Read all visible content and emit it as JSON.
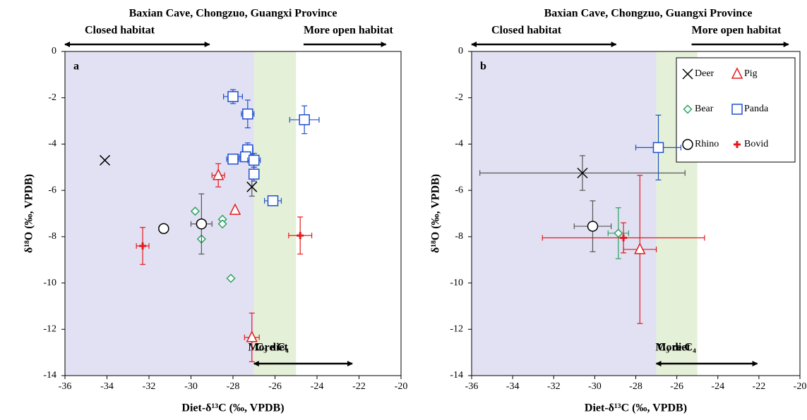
{
  "chart_data": [
    {
      "type": "scatter",
      "title": "Baxian Cave, Chongzuo, Guangxi Province",
      "panel_label": "a",
      "xlabel": "Diet-δ¹³C (‰, VPDB)",
      "ylabel": "δ¹⁸O (‰, VPDB)",
      "xlim": [
        -36,
        -20
      ],
      "ylim": [
        -14,
        0
      ],
      "xticks": [
        -36,
        -34,
        -32,
        -30,
        -28,
        -26,
        -24,
        -22,
        -20
      ],
      "yticks": [
        0,
        -2,
        -4,
        -6,
        -8,
        -10,
        -12,
        -14
      ],
      "regions": [
        {
          "xlim": [
            -36,
            -27
          ],
          "color": "#e1e1f3"
        },
        {
          "xlim": [
            -27,
            -25
          ],
          "color": "#e5f0d9"
        }
      ],
      "annotations": {
        "closed": "Closed habitat",
        "open": "More open habitat",
        "c3": "C₃ diet",
        "c4": "More C₄"
      },
      "legend": false,
      "series": [
        {
          "marker": "x",
          "color": "#000000",
          "errcolor": "#555555",
          "x": [
            -34.1,
            -27.1
          ],
          "values": [
            -4.7,
            -5.85
          ],
          "xerr": [
            null,
            null
          ],
          "yerr": [
            null,
            0.4
          ]
        },
        {
          "marker": "triangle",
          "color": "#e41a1c",
          "errcolor": "#e41a1c",
          "x": [
            -28.7,
            -27.9,
            -27.1
          ],
          "values": [
            -5.35,
            -6.85,
            -12.35
          ],
          "xerr": [
            0.3,
            null,
            0.35
          ],
          "yerr": [
            0.5,
            null,
            1.05
          ]
        },
        {
          "marker": "diamond",
          "color": "#2ca25f",
          "errcolor": "#2ca25f",
          "x": [
            -29.8,
            -29.5,
            -28.5,
            -28.5,
            -28.1
          ],
          "values": [
            -6.9,
            -8.1,
            -7.25,
            -7.45,
            -9.8
          ],
          "xerr": [
            null,
            null,
            null,
            null,
            null
          ],
          "yerr": [
            null,
            null,
            null,
            null,
            null
          ]
        },
        {
          "marker": "circle",
          "color": "#000000",
          "errcolor": "#555555",
          "x": [
            -31.3,
            -29.5
          ],
          "values": [
            -7.65,
            -7.45
          ],
          "xerr": [
            null,
            0.5
          ],
          "yerr": [
            null,
            1.3
          ]
        },
        {
          "marker": "plus",
          "color": "#e41a1c",
          "errcolor": "#e41a1c",
          "x": [
            -32.3,
            -24.8
          ],
          "values": [
            -8.4,
            -7.95
          ],
          "xerr": [
            0.3,
            0.55
          ],
          "yerr": [
            0.8,
            0.8
          ]
        },
        {
          "marker": "square",
          "color": "#1f4fd0",
          "errcolor": "#1f4fd0",
          "x": [
            -28,
            -27.3,
            -24.6,
            -27.3,
            -28,
            -27.4,
            -27,
            -27,
            -26.1
          ],
          "values": [
            -1.95,
            -2.7,
            -2.95,
            -4.25,
            -4.65,
            -4.55,
            -4.7,
            -5.3,
            -6.45
          ],
          "xerr": [
            0.45,
            0.3,
            0.7,
            0.25,
            0.3,
            0.3,
            0.3,
            null,
            0.4
          ],
          "yerr": [
            0.3,
            0.6,
            0.6,
            0.3,
            0.2,
            null,
            0.3,
            0.3,
            0.15
          ]
        }
      ]
    },
    {
      "type": "scatter",
      "title": "Baxian Cave, Chongzuo, Guangxi Province",
      "panel_label": "b",
      "xlabel": "Diet-δ¹³C (‰, VPDB)",
      "ylabel": "δ¹⁸O (‰, VPDB)",
      "xlim": [
        -36,
        -20
      ],
      "ylim": [
        -14,
        0
      ],
      "xticks": [
        -36,
        -34,
        -32,
        -30,
        -28,
        -26,
        -24,
        -22,
        -20
      ],
      "yticks": [
        0,
        -2,
        -4,
        -6,
        -8,
        -10,
        -12,
        -14
      ],
      "regions": [
        {
          "xlim": [
            -36,
            -27
          ],
          "color": "#e1e1f3"
        },
        {
          "xlim": [
            -27,
            -25
          ],
          "color": "#e5f0d9"
        }
      ],
      "annotations": {
        "closed": "Closed habitat",
        "open": "More open habitat",
        "c3": "C₃ diet",
        "c4": "More C₄"
      },
      "legend": true,
      "legend_corner": "upper right",
      "series": [
        {
          "name": "Deer",
          "marker": "x",
          "color": "#000000",
          "errcolor": "#555555",
          "x": [
            -30.6
          ],
          "values": [
            -5.25
          ],
          "xerr": [
            5
          ],
          "yerr": [
            0.75
          ]
        },
        {
          "name": "Pig",
          "marker": "triangle",
          "color": "#e41a1c",
          "errcolor": "#e41a1c",
          "x": [
            -27.8
          ],
          "values": [
            -8.55
          ],
          "xerr": [
            0.8
          ],
          "yerr": [
            3.2
          ]
        },
        {
          "name": "Bear",
          "marker": "diamond",
          "color": "#2ca25f",
          "errcolor": "#2ca25f",
          "x": [
            -28.85
          ],
          "values": [
            -7.85
          ],
          "xerr": [
            0.5
          ],
          "yerr": [
            1.1
          ]
        },
        {
          "name": "Panda",
          "marker": "square",
          "color": "#1f4fd0",
          "errcolor": "#1f4fd0",
          "x": [
            -26.9
          ],
          "values": [
            -4.15
          ],
          "xerr": [
            1.1
          ],
          "yerr": [
            1.4
          ]
        },
        {
          "name": "Rhino",
          "marker": "circle",
          "color": "#000000",
          "errcolor": "#555555",
          "x": [
            -30.1
          ],
          "values": [
            -7.55
          ],
          "xerr": [
            0.9
          ],
          "yerr": [
            1.1
          ]
        },
        {
          "name": "Bovid",
          "marker": "plus",
          "color": "#e41a1c",
          "errcolor": "#e41a1c",
          "x": [
            -28.6
          ],
          "values": [
            -8.05
          ],
          "xerr": [
            3.95
          ],
          "yerr": [
            0.65
          ]
        }
      ]
    }
  ]
}
